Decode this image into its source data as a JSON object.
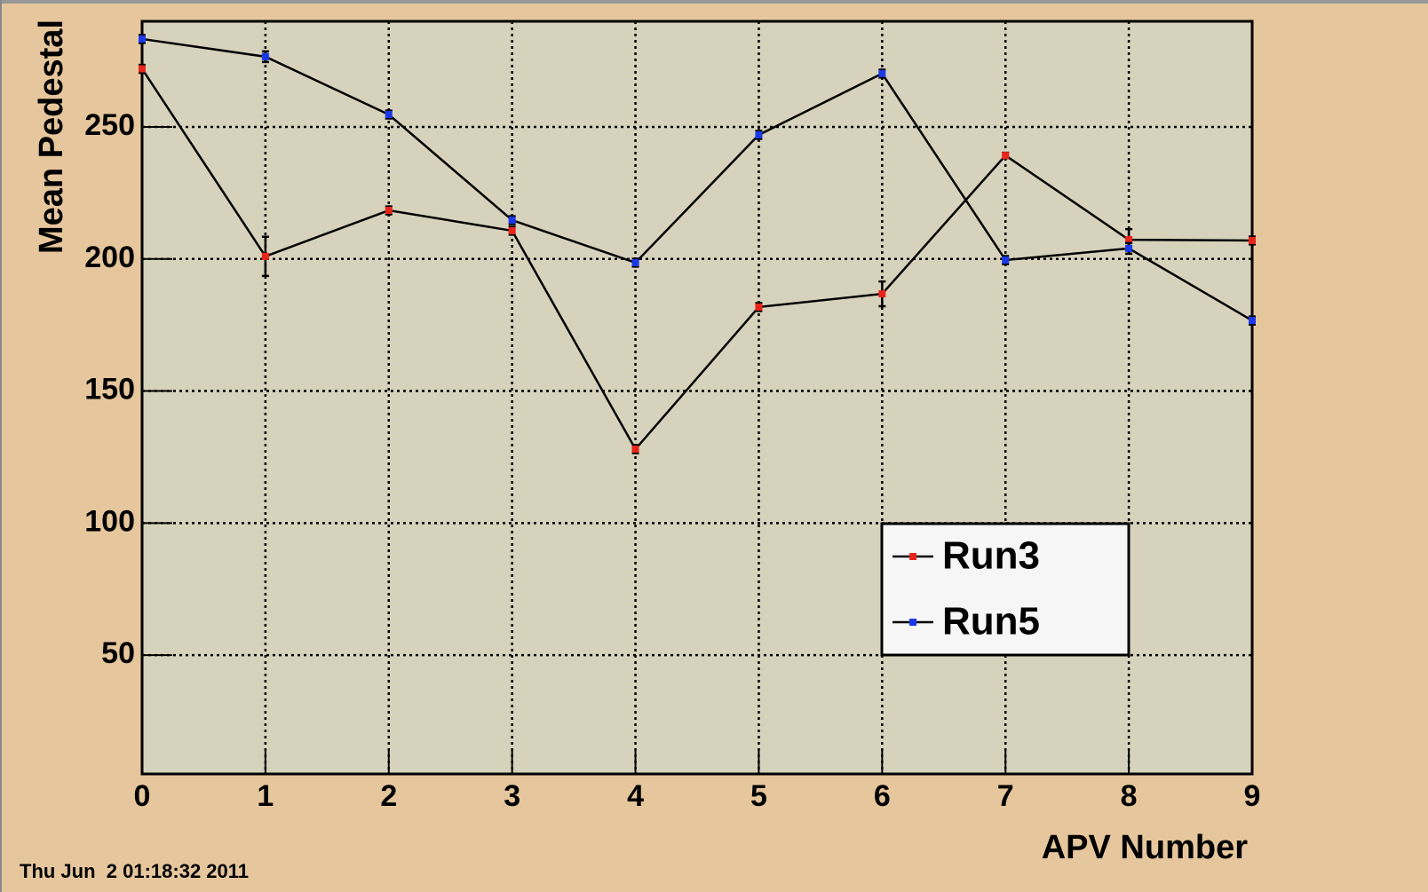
{
  "chart_data": {
    "type": "line",
    "y_label": "Mean Pedestal",
    "x_label": "APV Number",
    "timestamp": "Thu Jun  2 01:18:32 2011",
    "x": [
      0,
      1,
      2,
      3,
      4,
      5,
      6,
      7,
      8,
      9
    ],
    "series": [
      {
        "name": "Run3",
        "color": "#e8251a",
        "values": [
          272,
          201,
          218.4,
          210.7,
          128,
          181.8,
          186.8,
          239.2,
          207.3,
          207
        ],
        "errors": [
          1.5,
          7.4,
          1.5,
          1.5,
          1.5,
          1.5,
          4.7,
          1,
          4,
          1.5
        ]
      },
      {
        "name": "Run5",
        "color": "#1a3ae8",
        "values": [
          283.3,
          276.6,
          254.7,
          214.7,
          198.6,
          247,
          270.2,
          199.6,
          204,
          176.7
        ],
        "errors": [
          1.5,
          2,
          1.5,
          1.5,
          1.5,
          1.5,
          1.5,
          1.5,
          2,
          1.5
        ]
      }
    ],
    "xlim": [
      0,
      9
    ],
    "xticks": [
      0,
      1,
      2,
      3,
      4,
      5,
      6,
      7,
      8,
      9
    ],
    "ylim": [
      5,
      290
    ],
    "yticks": [
      50,
      100,
      150,
      200,
      250
    ],
    "grid": true,
    "legend": "lower right"
  }
}
